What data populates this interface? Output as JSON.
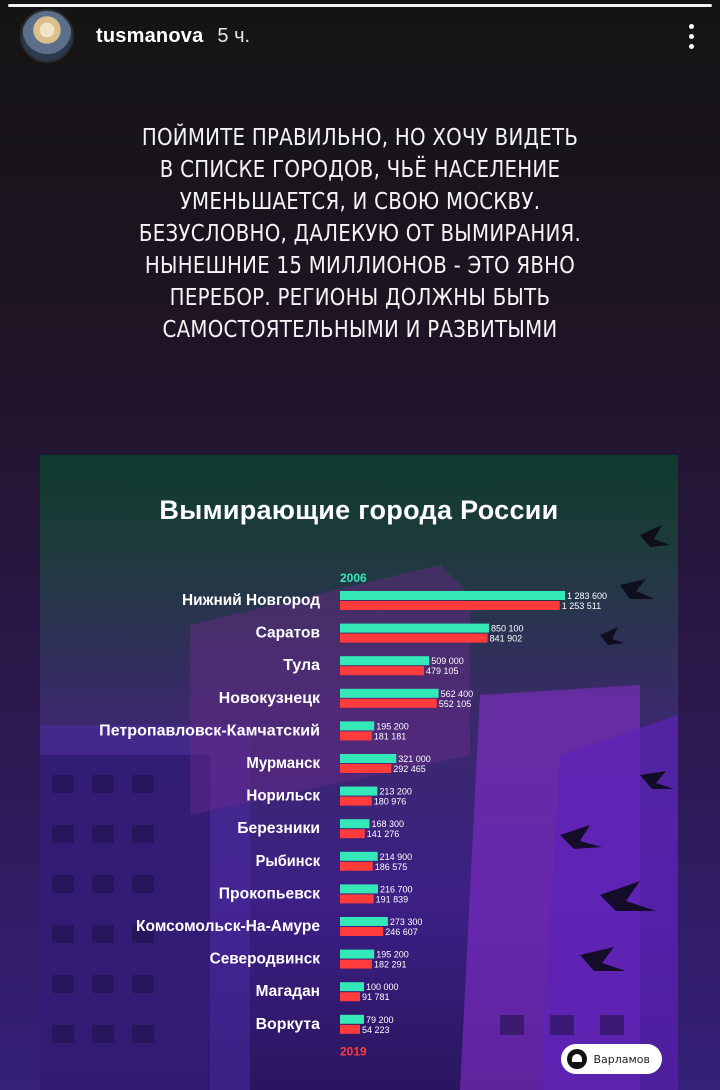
{
  "story": {
    "username": "tusmanova",
    "timestamp": "5 ч.",
    "text": "ПОЙМИТЕ ПРАВИЛЬНО, НО ХОЧУ ВИДЕТЬ В СПИСКЕ ГОРОДОВ, ЧЬЁ НАСЕЛЕНИЕ УМЕНЬШАЕТСЯ, И СВОЮ МОСКВУ. БЕЗУСЛОВНО, ДАЛЕКУЮ ОТ ВЫМИРАНИЯ. НЫНЕШНИЕ 15 МИЛЛИОНОВ - ЭТО ЯВНО ПЕРЕБОР. РЕГИОНЫ ДОЛЖНЫ БЫТЬ САМОСТОЯТЕЛЬНЫМИ И РАЗВИТЫМИ",
    "more_icon": "more-vertical-icon",
    "brand_label": "Варламов"
  },
  "colors": {
    "bar_2006": "#34e8b8",
    "bar_2019": "#ff3b3b",
    "label": "#ffffff"
  },
  "chart_data": {
    "type": "bar",
    "orientation": "horizontal",
    "title": "Вымирающие города России",
    "categories": [
      "Нижний Новгород",
      "Саратов",
      "Тула",
      "Новокузнецк",
      "Петропавловск-Камчатский",
      "Мурманск",
      "Норильск",
      "Березники",
      "Рыбинск",
      "Прокопьевск",
      "Комсомольск-На-Амуре",
      "Северодвинск",
      "Магадан",
      "Воркута"
    ],
    "series": [
      {
        "name": "2006",
        "values": [
          1283600,
          850100,
          509000,
          562400,
          195200,
          321000,
          213200,
          168300,
          214900,
          216700,
          273300,
          195200,
          100000,
          79200
        ],
        "labels": [
          "1 283 600",
          "850 100",
          "509 000",
          "562 400",
          "195 200",
          "321 000",
          "213 200",
          "168 300",
          "214 900",
          "216 700",
          "273 300",
          "195 200",
          "100 000",
          "79 200"
        ]
      },
      {
        "name": "2019",
        "values": [
          1253511,
          841902,
          479105,
          552105,
          181181,
          292465,
          180976,
          141276,
          186575,
          191839,
          246607,
          182291,
          91781,
          54223
        ],
        "labels": [
          "1 253 511",
          "841 902",
          "479 105",
          "552 105",
          "181 181",
          "292 465",
          "180 976",
          "141 276",
          "186 575",
          "191 839",
          "246 607",
          "182 291",
          "91 781",
          "54 223"
        ]
      }
    ],
    "xlim": [
      0,
      1283600
    ],
    "grid": false,
    "legend": "none"
  }
}
